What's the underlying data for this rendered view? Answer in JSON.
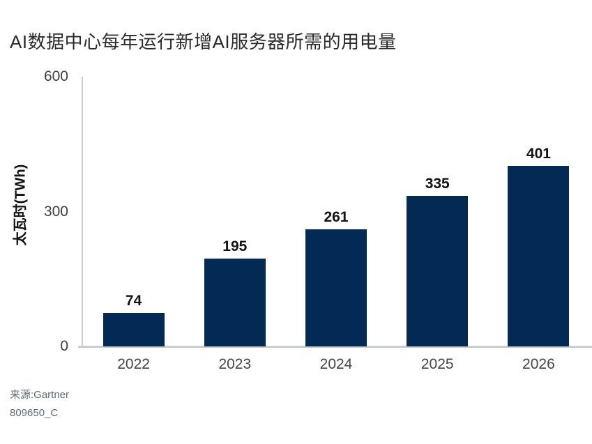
{
  "page": {
    "background": "#ffffff"
  },
  "chart_data": {
    "type": "bar",
    "title": "AI数据中心每年运行新增AI服务器所需的用电量",
    "categories": [
      "2022",
      "2023",
      "2024",
      "2025",
      "2026"
    ],
    "values": [
      74,
      195,
      261,
      335,
      401
    ],
    "xlabel": "",
    "ylabel": "太瓦时(TWh)",
    "ylim": [
      0,
      600
    ],
    "yticks": [
      0,
      300,
      600
    ],
    "grid": false,
    "legend": "none",
    "bar_color": "#032a55",
    "value_label_color": "#131313",
    "axis_color": "#c9cdce",
    "tick_label_color": "#3f3f3f",
    "x_label_color": "#474747"
  },
  "footer": {
    "source": "来源:Gartner",
    "code": "809650_C"
  }
}
